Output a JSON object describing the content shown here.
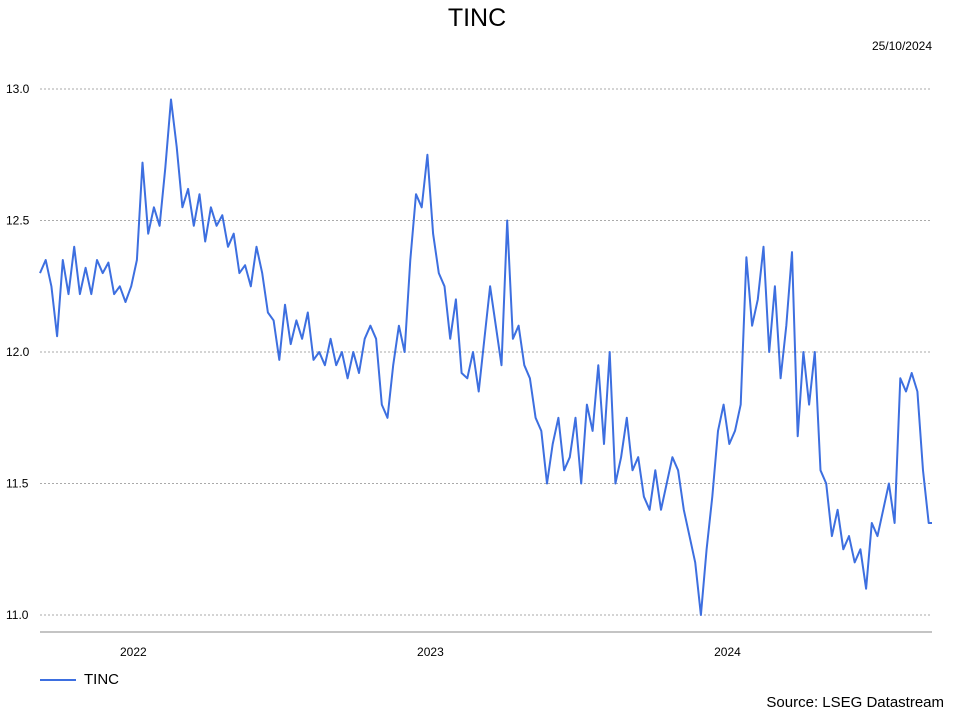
{
  "chart_data": {
    "type": "line",
    "title": "TINC",
    "date": "25/10/2024",
    "source": "Source: LSEG Datastream",
    "ylim": [
      11.0,
      13.0
    ],
    "y_ticks": [
      "11.0",
      "11.5",
      "12.0",
      "12.5",
      "13.0"
    ],
    "x_range": [
      "2021-10-25",
      "2024-10-25"
    ],
    "x_ticks": [
      {
        "label": "2022",
        "date": "2022-01-01"
      },
      {
        "label": "2023",
        "date": "2023-01-01"
      },
      {
        "label": "2024",
        "date": "2024-01-01"
      }
    ],
    "grid": true,
    "legend_position": "bottom-left",
    "colors": {
      "line": "#3d6fe0",
      "grid": "#aaaaaa",
      "axis": "#888888"
    },
    "series": [
      {
        "name": "TINC",
        "points": [
          [
            "2021-10-25",
            12.3
          ],
          [
            "2021-11-01",
            12.35
          ],
          [
            "2021-11-08",
            12.25
          ],
          [
            "2021-11-15",
            12.06
          ],
          [
            "2021-11-22",
            12.35
          ],
          [
            "2021-11-29",
            12.22
          ],
          [
            "2021-12-06",
            12.4
          ],
          [
            "2021-12-13",
            12.22
          ],
          [
            "2021-12-20",
            12.32
          ],
          [
            "2021-12-27",
            12.22
          ],
          [
            "2022-01-03",
            12.35
          ],
          [
            "2022-01-10",
            12.3
          ],
          [
            "2022-01-17",
            12.34
          ],
          [
            "2022-01-24",
            12.22
          ],
          [
            "2022-01-31",
            12.25
          ],
          [
            "2022-02-07",
            12.19
          ],
          [
            "2022-02-14",
            12.25
          ],
          [
            "2022-02-21",
            12.35
          ],
          [
            "2022-02-28",
            12.72
          ],
          [
            "2022-03-07",
            12.45
          ],
          [
            "2022-03-14",
            12.55
          ],
          [
            "2022-03-21",
            12.48
          ],
          [
            "2022-03-28",
            12.7
          ],
          [
            "2022-04-04",
            12.96
          ],
          [
            "2022-04-11",
            12.78
          ],
          [
            "2022-04-18",
            12.55
          ],
          [
            "2022-04-25",
            12.62
          ],
          [
            "2022-05-02",
            12.48
          ],
          [
            "2022-05-09",
            12.6
          ],
          [
            "2022-05-16",
            12.42
          ],
          [
            "2022-05-23",
            12.55
          ],
          [
            "2022-05-30",
            12.48
          ],
          [
            "2022-06-06",
            12.52
          ],
          [
            "2022-06-13",
            12.4
          ],
          [
            "2022-06-20",
            12.45
          ],
          [
            "2022-06-27",
            12.3
          ],
          [
            "2022-07-04",
            12.33
          ],
          [
            "2022-07-11",
            12.25
          ],
          [
            "2022-07-18",
            12.4
          ],
          [
            "2022-07-25",
            12.3
          ],
          [
            "2022-08-01",
            12.15
          ],
          [
            "2022-08-08",
            12.12
          ],
          [
            "2022-08-15",
            11.97
          ],
          [
            "2022-08-22",
            12.18
          ],
          [
            "2022-08-29",
            12.03
          ],
          [
            "2022-09-05",
            12.12
          ],
          [
            "2022-09-12",
            12.05
          ],
          [
            "2022-09-19",
            12.15
          ],
          [
            "2022-09-26",
            11.97
          ],
          [
            "2022-10-03",
            12.0
          ],
          [
            "2022-10-10",
            11.95
          ],
          [
            "2022-10-17",
            12.05
          ],
          [
            "2022-10-24",
            11.95
          ],
          [
            "2022-10-31",
            12.0
          ],
          [
            "2022-11-07",
            11.9
          ],
          [
            "2022-11-14",
            12.0
          ],
          [
            "2022-11-21",
            11.92
          ],
          [
            "2022-11-28",
            12.05
          ],
          [
            "2022-12-05",
            12.1
          ],
          [
            "2022-12-12",
            12.05
          ],
          [
            "2022-12-19",
            11.8
          ],
          [
            "2022-12-26",
            11.75
          ],
          [
            "2023-01-02",
            11.95
          ],
          [
            "2023-01-09",
            12.1
          ],
          [
            "2023-01-16",
            12.0
          ],
          [
            "2023-01-23",
            12.35
          ],
          [
            "2023-01-30",
            12.6
          ],
          [
            "2023-02-06",
            12.55
          ],
          [
            "2023-02-13",
            12.75
          ],
          [
            "2023-02-20",
            12.45
          ],
          [
            "2023-02-27",
            12.3
          ],
          [
            "2023-03-06",
            12.25
          ],
          [
            "2023-03-13",
            12.05
          ],
          [
            "2023-03-20",
            12.2
          ],
          [
            "2023-03-27",
            11.92
          ],
          [
            "2023-04-03",
            11.9
          ],
          [
            "2023-04-10",
            12.0
          ],
          [
            "2023-04-17",
            11.85
          ],
          [
            "2023-04-24",
            12.05
          ],
          [
            "2023-05-01",
            12.25
          ],
          [
            "2023-05-08",
            12.1
          ],
          [
            "2023-05-15",
            11.95
          ],
          [
            "2023-05-22",
            12.5
          ],
          [
            "2023-05-29",
            12.05
          ],
          [
            "2023-06-05",
            12.1
          ],
          [
            "2023-06-12",
            11.95
          ],
          [
            "2023-06-19",
            11.9
          ],
          [
            "2023-06-26",
            11.75
          ],
          [
            "2023-07-03",
            11.7
          ],
          [
            "2023-07-10",
            11.5
          ],
          [
            "2023-07-17",
            11.65
          ],
          [
            "2023-07-24",
            11.75
          ],
          [
            "2023-07-31",
            11.55
          ],
          [
            "2023-08-07",
            11.6
          ],
          [
            "2023-08-14",
            11.75
          ],
          [
            "2023-08-21",
            11.5
          ],
          [
            "2023-08-28",
            11.8
          ],
          [
            "2023-09-04",
            11.7
          ],
          [
            "2023-09-11",
            11.95
          ],
          [
            "2023-09-18",
            11.65
          ],
          [
            "2023-09-25",
            12.0
          ],
          [
            "2023-10-02",
            11.5
          ],
          [
            "2023-10-09",
            11.6
          ],
          [
            "2023-10-16",
            11.75
          ],
          [
            "2023-10-23",
            11.55
          ],
          [
            "2023-10-30",
            11.6
          ],
          [
            "2023-11-06",
            11.45
          ],
          [
            "2023-11-13",
            11.4
          ],
          [
            "2023-11-20",
            11.55
          ],
          [
            "2023-11-27",
            11.4
          ],
          [
            "2023-12-04",
            11.5
          ],
          [
            "2023-12-11",
            11.6
          ],
          [
            "2023-12-18",
            11.55
          ],
          [
            "2023-12-25",
            11.4
          ],
          [
            "2024-01-01",
            11.3
          ],
          [
            "2024-01-08",
            11.2
          ],
          [
            "2024-01-15",
            11.0
          ],
          [
            "2024-01-22",
            11.25
          ],
          [
            "2024-01-29",
            11.45
          ],
          [
            "2024-02-05",
            11.7
          ],
          [
            "2024-02-12",
            11.8
          ],
          [
            "2024-02-19",
            11.65
          ],
          [
            "2024-02-26",
            11.7
          ],
          [
            "2024-03-04",
            11.8
          ],
          [
            "2024-03-11",
            12.36
          ],
          [
            "2024-03-18",
            12.1
          ],
          [
            "2024-03-25",
            12.2
          ],
          [
            "2024-04-01",
            12.4
          ],
          [
            "2024-04-08",
            12.0
          ],
          [
            "2024-04-15",
            12.25
          ],
          [
            "2024-04-22",
            11.9
          ],
          [
            "2024-04-29",
            12.1
          ],
          [
            "2024-05-06",
            12.38
          ],
          [
            "2024-05-13",
            11.68
          ],
          [
            "2024-05-20",
            12.0
          ],
          [
            "2024-05-27",
            11.8
          ],
          [
            "2024-06-03",
            12.0
          ],
          [
            "2024-06-10",
            11.55
          ],
          [
            "2024-06-17",
            11.5
          ],
          [
            "2024-06-24",
            11.3
          ],
          [
            "2024-07-01",
            11.4
          ],
          [
            "2024-07-08",
            11.25
          ],
          [
            "2024-07-15",
            11.3
          ],
          [
            "2024-07-22",
            11.2
          ],
          [
            "2024-07-29",
            11.25
          ],
          [
            "2024-08-05",
            11.1
          ],
          [
            "2024-08-12",
            11.35
          ],
          [
            "2024-08-19",
            11.3
          ],
          [
            "2024-08-26",
            11.4
          ],
          [
            "2024-09-02",
            11.5
          ],
          [
            "2024-09-09",
            11.35
          ],
          [
            "2024-09-16",
            11.9
          ],
          [
            "2024-09-23",
            11.85
          ],
          [
            "2024-09-30",
            11.92
          ],
          [
            "2024-10-07",
            11.85
          ],
          [
            "2024-10-14",
            11.55
          ],
          [
            "2024-10-21",
            11.35
          ],
          [
            "2024-10-25",
            11.35
          ]
        ]
      }
    ]
  }
}
